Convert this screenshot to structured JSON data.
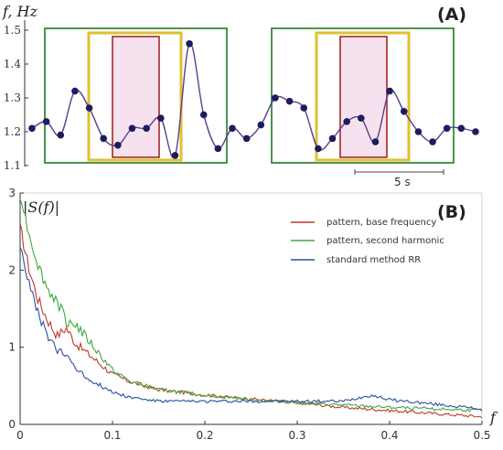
{
  "chart_data": [
    {
      "panel_label": "(A)",
      "type": "line",
      "ylabel": "f, Hz",
      "ylim": [
        1.1,
        1.5
      ],
      "y_ticks": [
        "1.1",
        "1.2",
        "1.3",
        "1.4",
        "1.5"
      ],
      "scale_bar_label": "5 s",
      "series": [
        {
          "values": [
            1.21,
            1.23,
            1.19,
            1.32,
            1.27,
            1.18,
            1.16,
            1.21,
            1.21,
            1.24,
            1.13,
            1.46,
            1.25,
            1.15,
            1.21,
            1.18,
            1.22,
            1.3,
            1.29,
            1.27,
            1.15,
            1.18,
            1.23,
            1.24,
            1.17,
            1.32,
            1.26,
            1.2,
            1.17,
            1.21,
            1.21,
            1.2
          ]
        }
      ],
      "colors": {
        "line": "#5c3d8f",
        "points": "#1c1d5e",
        "outer_box": "#1f7a1f",
        "middle_box": "#e0c030",
        "inner_box": "#a02a2a"
      }
    },
    {
      "panel_label": "(B)",
      "type": "line",
      "ylabel": "|S(f)|",
      "xlabel": "f",
      "xlim": [
        0,
        0.5
      ],
      "ylim": [
        0,
        3
      ],
      "x_ticks": [
        "0",
        "0.1",
        "0.2",
        "0.3",
        "0.4",
        "0.5"
      ],
      "y_ticks": [
        "0",
        "1",
        "2",
        "3"
      ],
      "legend_position": "top-right",
      "series": [
        {
          "name": "pattern, base frequency",
          "color": "#c0392b",
          "x": [
            0,
            0.01,
            0.02,
            0.03,
            0.04,
            0.05,
            0.06,
            0.07,
            0.08,
            0.1,
            0.12,
            0.15,
            0.2,
            0.25,
            0.3,
            0.35,
            0.4,
            0.45,
            0.5
          ],
          "values": [
            2.55,
            2.0,
            1.6,
            1.35,
            1.15,
            1.25,
            1.05,
            0.95,
            0.85,
            0.65,
            0.55,
            0.45,
            0.38,
            0.33,
            0.28,
            0.22,
            0.18,
            0.14,
            0.1
          ]
        },
        {
          "name": "pattern, second harmonic",
          "color": "#3da83d",
          "x": [
            0,
            0.01,
            0.02,
            0.03,
            0.04,
            0.05,
            0.06,
            0.07,
            0.08,
            0.1,
            0.12,
            0.15,
            0.2,
            0.25,
            0.3,
            0.35,
            0.4,
            0.45,
            0.5
          ],
          "values": [
            3.0,
            2.45,
            2.05,
            1.75,
            1.6,
            1.35,
            1.3,
            1.15,
            1.0,
            0.7,
            0.55,
            0.45,
            0.38,
            0.32,
            0.28,
            0.25,
            0.22,
            0.2,
            0.18
          ]
        },
        {
          "name": "standard method RR",
          "color": "#2c4fa3",
          "x": [
            0,
            0.01,
            0.02,
            0.03,
            0.04,
            0.05,
            0.06,
            0.07,
            0.08,
            0.1,
            0.12,
            0.15,
            0.2,
            0.25,
            0.3,
            0.35,
            0.38,
            0.4,
            0.45,
            0.5
          ],
          "values": [
            2.35,
            1.8,
            1.4,
            1.15,
            0.95,
            0.9,
            0.75,
            0.62,
            0.55,
            0.42,
            0.35,
            0.3,
            0.3,
            0.3,
            0.3,
            0.3,
            0.38,
            0.32,
            0.26,
            0.2
          ]
        }
      ]
    }
  ]
}
